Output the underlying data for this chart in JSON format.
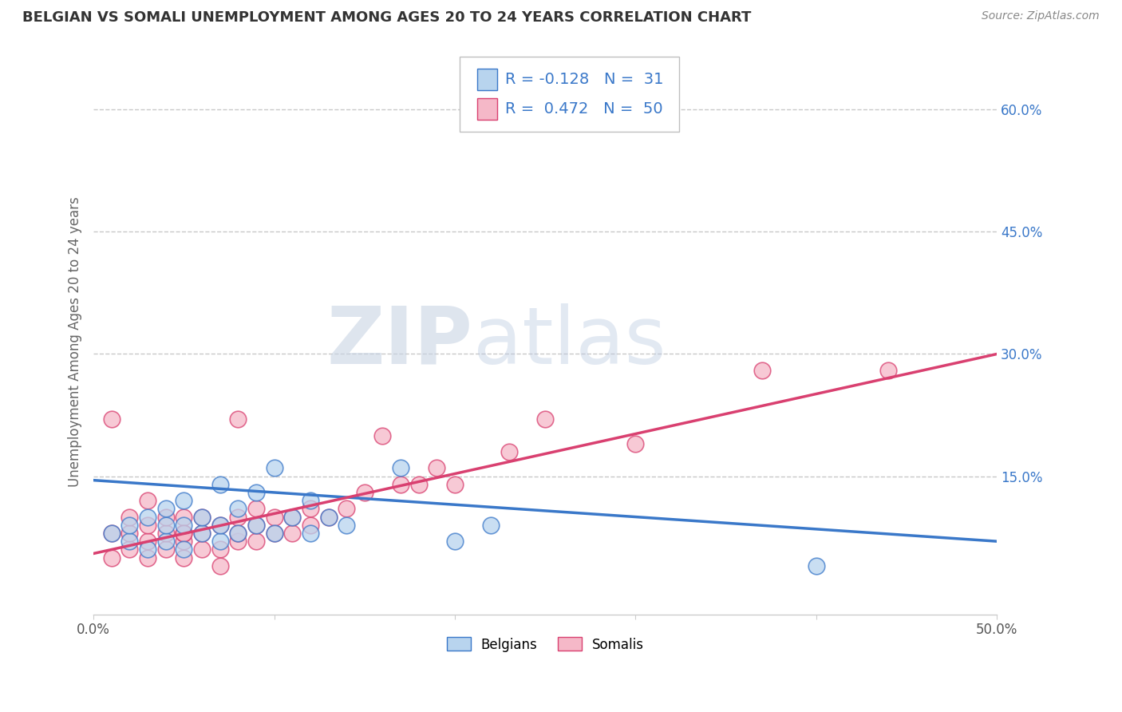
{
  "title": "BELGIAN VS SOMALI UNEMPLOYMENT AMONG AGES 20 TO 24 YEARS CORRELATION CHART",
  "source": "Source: ZipAtlas.com",
  "ylabel": "Unemployment Among Ages 20 to 24 years",
  "xlim": [
    0.0,
    0.5
  ],
  "ylim": [
    -0.02,
    0.65
  ],
  "yticks_right": [
    0.15,
    0.3,
    0.45,
    0.6
  ],
  "ytick_right_labels": [
    "15.0%",
    "30.0%",
    "45.0%",
    "60.0%"
  ],
  "grid_color": "#c8c8c8",
  "background_color": "#ffffff",
  "belgian_color": "#b8d4ee",
  "somali_color": "#f5b8c8",
  "belgian_line_color": "#3a78c9",
  "somali_line_color": "#d94070",
  "belgian_R": -0.128,
  "belgian_N": 31,
  "somali_R": 0.472,
  "somali_N": 50,
  "watermark_zip": "ZIP",
  "watermark_atlas": "atlas",
  "legend_label_belgian": "Belgians",
  "legend_label_somali": "Somalis",
  "belgian_scatter_x": [
    0.01,
    0.02,
    0.02,
    0.03,
    0.03,
    0.04,
    0.04,
    0.04,
    0.05,
    0.05,
    0.05,
    0.06,
    0.06,
    0.07,
    0.07,
    0.07,
    0.08,
    0.08,
    0.09,
    0.09,
    0.1,
    0.1,
    0.11,
    0.12,
    0.12,
    0.13,
    0.14,
    0.17,
    0.2,
    0.22,
    0.4
  ],
  "belgian_scatter_y": [
    0.08,
    0.07,
    0.09,
    0.06,
    0.1,
    0.07,
    0.09,
    0.11,
    0.06,
    0.09,
    0.12,
    0.08,
    0.1,
    0.07,
    0.09,
    0.14,
    0.08,
    0.11,
    0.09,
    0.13,
    0.08,
    0.16,
    0.1,
    0.08,
    0.12,
    0.1,
    0.09,
    0.16,
    0.07,
    0.09,
    0.04
  ],
  "somali_scatter_x": [
    0.01,
    0.01,
    0.02,
    0.02,
    0.02,
    0.03,
    0.03,
    0.03,
    0.04,
    0.04,
    0.04,
    0.05,
    0.05,
    0.05,
    0.05,
    0.06,
    0.06,
    0.06,
    0.07,
    0.07,
    0.08,
    0.08,
    0.08,
    0.08,
    0.09,
    0.09,
    0.09,
    0.1,
    0.1,
    0.11,
    0.11,
    0.12,
    0.12,
    0.13,
    0.14,
    0.15,
    0.16,
    0.17,
    0.18,
    0.19,
    0.2,
    0.23,
    0.25,
    0.3,
    0.37,
    0.44,
    0.01,
    0.03,
    0.05,
    0.07
  ],
  "somali_scatter_y": [
    0.05,
    0.08,
    0.06,
    0.08,
    0.1,
    0.05,
    0.07,
    0.09,
    0.06,
    0.08,
    0.1,
    0.05,
    0.07,
    0.08,
    0.1,
    0.06,
    0.08,
    0.1,
    0.06,
    0.09,
    0.07,
    0.08,
    0.1,
    0.22,
    0.07,
    0.09,
    0.11,
    0.08,
    0.1,
    0.08,
    0.1,
    0.09,
    0.11,
    0.1,
    0.11,
    0.13,
    0.2,
    0.14,
    0.14,
    0.16,
    0.14,
    0.18,
    0.22,
    0.19,
    0.28,
    0.28,
    0.22,
    0.12,
    0.08,
    0.04
  ],
  "belgian_trendline_x": [
    0.0,
    0.5
  ],
  "belgian_trendline_y": [
    0.145,
    0.07
  ],
  "somali_trendline_x": [
    0.0,
    0.5
  ],
  "somali_trendline_y": [
    0.055,
    0.3
  ]
}
